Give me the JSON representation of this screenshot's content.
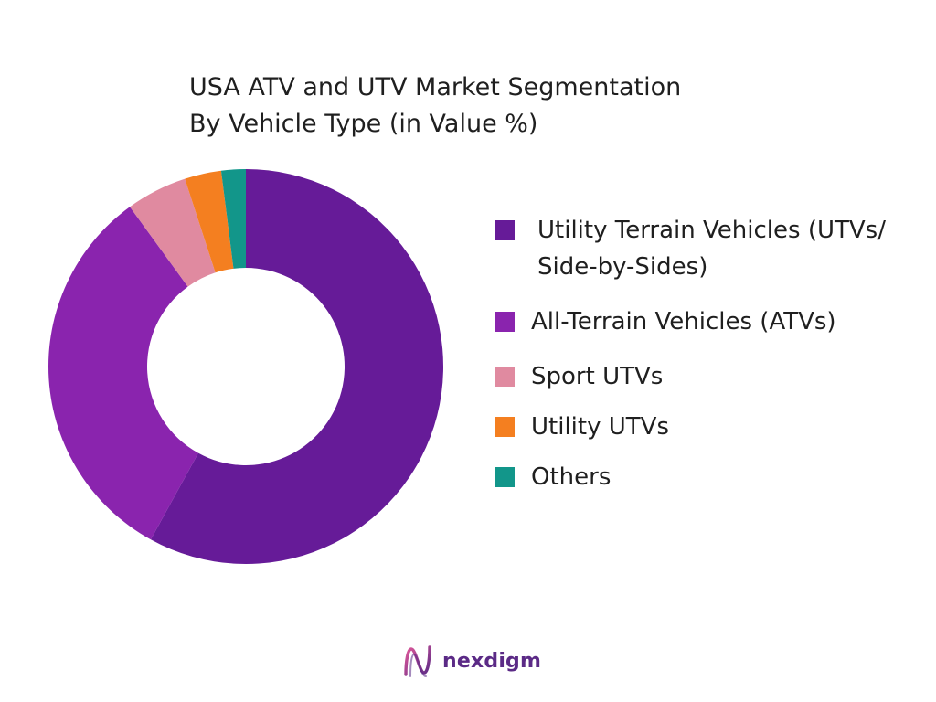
{
  "chart_data": {
    "type": "pie",
    "donut": true,
    "title_lines": [
      "USA ATV and UTV Market Segmentation",
      "By Vehicle Type (in Value %)"
    ],
    "categories": [
      "Utility Terrain Vehicles (UTVs/ Side-by-Sides)",
      "All-Terrain Vehicles (ATVs)",
      "Sport UTVs",
      "Utility UTVs",
      "Others"
    ],
    "values": [
      58,
      32,
      5,
      3,
      2
    ],
    "colors": [
      "#661b98",
      "#8a24ae",
      "#e08aa0",
      "#f47f20",
      "#12968a"
    ],
    "legend_position": "right"
  },
  "legend": {
    "items": [
      {
        "label_line1": "Utility Terrain Vehicles (UTVs/",
        "label_line2": "Side-by-Sides)"
      },
      {
        "label": "All-Terrain Vehicles (ATVs)"
      },
      {
        "label": "Sport UTVs"
      },
      {
        "label": "Utility UTVs"
      },
      {
        "label": "Others"
      }
    ]
  },
  "brand": {
    "logo_text": "nexdigm",
    "color": "#5b2a86"
  }
}
